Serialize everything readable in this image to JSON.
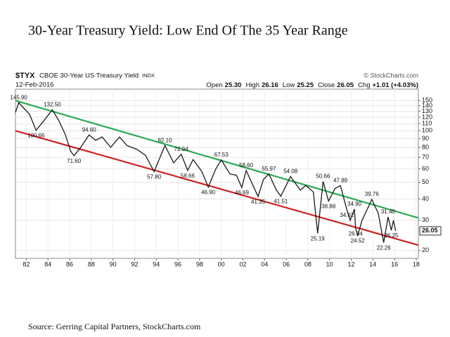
{
  "chart_data": {
    "type": "line",
    "title": "30-Year Treasury Yield: Low End Of The 35 Year Range",
    "symbol": "$TYX",
    "description": "CBOE 30-Year US Treasury Yield",
    "exchange": "INDX",
    "credit": "© StockCharts.com",
    "date": "12-Feb-2016",
    "quote": [
      {
        "label": "Open",
        "value": "25.30"
      },
      {
        "label": "High",
        "value": "26.16"
      },
      {
        "label": "Low",
        "value": "25.25"
      },
      {
        "label": "Close",
        "value": "26.05"
      },
      {
        "label": "Chg",
        "value": "+1.01 (+4.03%)"
      }
    ],
    "source": "Source: Gerring Capital Partners, StockCharts.com",
    "log_scale": true,
    "grid": true,
    "xlim": [
      1981,
      2018.2
    ],
    "ylim": [
      18,
      175
    ],
    "xticks": [
      {
        "value": 1982,
        "label": "82"
      },
      {
        "value": 1984,
        "label": "84"
      },
      {
        "value": 1986,
        "label": "86"
      },
      {
        "value": 1988,
        "label": "88"
      },
      {
        "value": 1990,
        "label": "90"
      },
      {
        "value": 1992,
        "label": "92"
      },
      {
        "value": 1994,
        "label": "94"
      },
      {
        "value": 1996,
        "label": "96"
      },
      {
        "value": 1998,
        "label": "98"
      },
      {
        "value": 2000,
        "label": "00"
      },
      {
        "value": 2002,
        "label": "02"
      },
      {
        "value": 2004,
        "label": "04"
      },
      {
        "value": 2006,
        "label": "06"
      },
      {
        "value": 2008,
        "label": "08"
      },
      {
        "value": 2010,
        "label": "10"
      },
      {
        "value": 2012,
        "label": "12"
      },
      {
        "value": 2014,
        "label": "14"
      },
      {
        "value": 2016,
        "label": "16"
      },
      {
        "value": 2018,
        "label": "18"
      }
    ],
    "yticks": [
      150,
      140,
      130,
      120,
      110,
      100,
      90,
      80,
      70,
      60,
      50,
      40,
      30,
      20
    ],
    "series": [
      {
        "name": "$TYX",
        "color": "#1a1a1a",
        "x": [
          1981.0,
          1981.3,
          1981.8,
          1982.3,
          1982.9,
          1983.5,
          1984.4,
          1985.0,
          1985.6,
          1986.1,
          1986.4,
          1986.9,
          1987.8,
          1988.4,
          1989.0,
          1989.8,
          1990.6,
          1991.3,
          1992.2,
          1993.0,
          1993.8,
          1994.8,
          1995.6,
          1996.3,
          1996.9,
          1997.4,
          1998.2,
          1998.8,
          1999.5,
          2000.0,
          2000.8,
          2001.4,
          2001.9,
          2002.3,
          2003.4,
          2003.9,
          2004.4,
          2005.1,
          2005.5,
          2006.4,
          2007.3,
          2007.8,
          2008.5,
          2008.9,
          2009.4,
          2009.9,
          2010.5,
          2011.0,
          2011.6,
          2011.9,
          2012.3,
          2012.4,
          2012.6,
          2013.0,
          2013.9,
          2014.5,
          2015.0,
          2015.4,
          2015.7,
          2015.9,
          2016.1
        ],
        "values": [
          128,
          145.9,
          135,
          125,
          100.66,
          112,
          132.5,
          115,
          95,
          76,
          71.6,
          78,
          94.6,
          88,
          92,
          80,
          92,
          82,
          78,
          72,
          57.8,
          82.1,
          65,
          72.94,
          58.66,
          68,
          58,
          46.9,
          60,
          67.53,
          56,
          55,
          46.69,
          58.6,
          41.35,
          52,
          55.97,
          45,
          41.51,
          54.08,
          45,
          48,
          44,
          25.19,
          50.66,
          38.88,
          46,
          47.89,
          34.62,
          30,
          34.9,
          26.94,
          24.52,
          30,
          39.76,
          33,
          22.26,
          31.4,
          26.25,
          30,
          26.05
        ],
        "value_labels": [
          null,
          "145.90",
          null,
          null,
          "100.66",
          null,
          "132.50",
          null,
          null,
          null,
          "71.60",
          null,
          "94.60",
          null,
          null,
          null,
          null,
          null,
          null,
          null,
          "57.80",
          "82.10",
          null,
          "72.94",
          "58.66",
          null,
          null,
          "46.90",
          null,
          "67.53",
          null,
          null,
          "46.69",
          "58.60",
          "41.35",
          null,
          "55.97",
          null,
          "41.51",
          "54.08",
          null,
          null,
          null,
          "25.19",
          "50.66",
          "38.88",
          null,
          "47.89",
          "34.62",
          null,
          "34.90",
          "26.94",
          "24.52",
          null,
          "39.76",
          null,
          "22.26",
          "31.40",
          "26.25",
          null,
          "26.05"
        ]
      }
    ],
    "trendlines": [
      {
        "color": "#2eaa55",
        "x": [
          1981,
          2018.2
        ],
        "values": [
          150,
          31
        ]
      },
      {
        "color": "#cc2222",
        "x": [
          1981,
          2018.2
        ],
        "values": [
          100,
          21.5
        ]
      }
    ]
  }
}
